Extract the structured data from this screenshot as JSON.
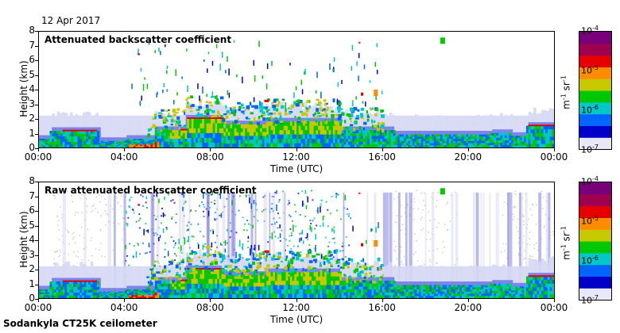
{
  "date": "12 Apr 2017",
  "footer": "Sodankyla CT25K ceilometer",
  "colors": {
    "scale": [
      "#e8e8f8",
      "#0000c8",
      "#0064ff",
      "#00c8c8",
      "#00c800",
      "#c8c800",
      "#ff8c00",
      "#e60000",
      "#a00050",
      "#780078"
    ],
    "noise": "#c0c0c0"
  },
  "chart_data": [
    {
      "type": "heatmap",
      "title": "Attenuated backscatter coefficient",
      "xlabel": "Time (UTC)",
      "ylabel": "Height (km)",
      "x_ticks": [
        "00:00",
        "04:00",
        "08:00",
        "12:00",
        "16:00",
        "20:00",
        "00:00"
      ],
      "y_ticks": [
        "0",
        "1",
        "2",
        "3",
        "4",
        "5",
        "6",
        "7",
        "8"
      ],
      "xlim_hours": [
        0,
        24
      ],
      "ylim_km": [
        0,
        8
      ],
      "colorbar": {
        "label": "m-1 sr-1",
        "ticks": [
          "10-7",
          "10-6",
          "10-5",
          "10-4"
        ],
        "scale": "log",
        "range": [
          1e-07,
          0.0001
        ]
      }
    },
    {
      "type": "heatmap",
      "title": "Raw attenuated backscatter coefficient",
      "xlabel": "Time (UTC)",
      "ylabel": "Height (km)",
      "x_ticks": [
        "00:00",
        "04:00",
        "08:00",
        "12:00",
        "16:00",
        "20:00",
        "00:00"
      ],
      "y_ticks": [
        "0",
        "1",
        "2",
        "3",
        "4",
        "5",
        "6",
        "7",
        "8"
      ],
      "xlim_hours": [
        0,
        24
      ],
      "ylim_km": [
        0,
        8
      ],
      "colorbar": {
        "label": "m-1 sr-1",
        "ticks": [
          "10-7",
          "10-6",
          "10-5",
          "10-4"
        ],
        "scale": "log",
        "range": [
          1e-07,
          0.0001
        ]
      }
    }
  ]
}
